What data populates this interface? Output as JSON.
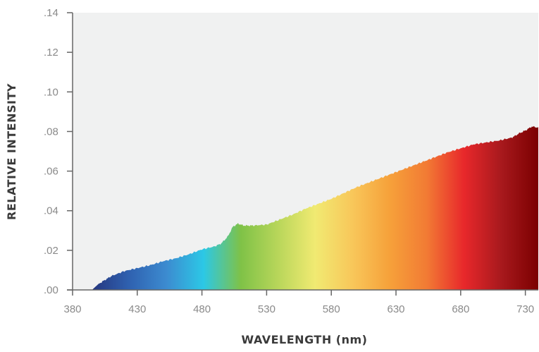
{
  "chart_data": {
    "type": "area",
    "xlabel": "WAVELENGTH (nm)",
    "ylabel": "RELATIVE INTENSITY",
    "xlim": [
      380,
      740
    ],
    "ylim": [
      0,
      0.14
    ],
    "xticks": [
      380,
      430,
      480,
      530,
      580,
      630,
      680,
      730
    ],
    "xtick_labels": [
      "380",
      "430",
      "480",
      "530",
      "580",
      "630",
      "680",
      "730"
    ],
    "yticks": [
      0,
      0.02,
      0.04,
      0.06,
      0.08,
      0.1,
      0.12,
      0.14
    ],
    "ytick_labels": [
      ".00",
      ".02",
      ".04",
      ".06",
      ".08",
      ".10",
      ".12",
      ".14"
    ],
    "grid": false,
    "background": "#f0f1f1",
    "fill": "spectral gradient (blue → cyan → green → yellow → orange → red → dark red)",
    "series": [
      {
        "x": [
          380,
          395,
          400,
          405,
          410,
          420,
          430,
          440,
          450,
          460,
          470,
          480,
          490,
          495,
          500,
          504,
          508,
          512,
          520,
          530,
          540,
          550,
          560,
          570,
          580,
          590,
          600,
          610,
          620,
          630,
          640,
          650,
          660,
          670,
          680,
          690,
          700,
          710,
          720,
          725,
          730,
          735,
          740
        ],
        "y": [
          0,
          0,
          0.003,
          0.005,
          0.007,
          0.0095,
          0.011,
          0.0125,
          0.0145,
          0.016,
          0.018,
          0.0205,
          0.022,
          0.0235,
          0.027,
          0.032,
          0.0335,
          0.0325,
          0.0325,
          0.033,
          0.0355,
          0.038,
          0.041,
          0.0435,
          0.046,
          0.049,
          0.052,
          0.0545,
          0.057,
          0.0595,
          0.062,
          0.0645,
          0.067,
          0.0695,
          0.0715,
          0.0735,
          0.0745,
          0.0755,
          0.077,
          0.079,
          0.0805,
          0.0825,
          0.082
        ]
      }
    ]
  },
  "colors": {
    "spectrum": [
      "#25377f",
      "#2f61b0",
      "#3c8bd0",
      "#2cc8e6",
      "#7fc247",
      "#b8d65a",
      "#f1ea72",
      "#f8c75a",
      "#f6a13a",
      "#f27b34",
      "#e8282b",
      "#a8191d",
      "#7b0000"
    ],
    "axis": "#666666",
    "plot_background": "#f0f1f1"
  }
}
